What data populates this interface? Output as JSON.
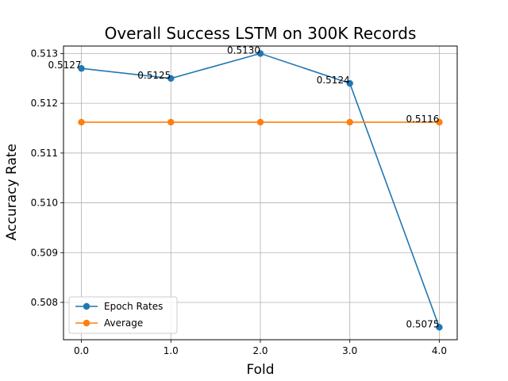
{
  "chart_data": {
    "type": "line",
    "title": "Overall Success LSTM on 300K Records",
    "xlabel": "Fold",
    "ylabel": "Accuracy Rate",
    "x": [
      0.0,
      1.0,
      2.0,
      3.0,
      4.0
    ],
    "xticks": [
      "0.0",
      "1.0",
      "2.0",
      "3.0",
      "4.0"
    ],
    "yticks": [
      "0.508",
      "0.509",
      "0.510",
      "0.511",
      "0.512",
      "0.513"
    ],
    "ytick_values": [
      0.508,
      0.509,
      0.51,
      0.511,
      0.512,
      0.513
    ],
    "xlim": [
      -0.2,
      4.2
    ],
    "ylim": [
      0.50725,
      0.51315
    ],
    "grid": true,
    "legend_position": "lower-left",
    "series": [
      {
        "name": "Epoch Rates",
        "color": "#1f77b4",
        "values": [
          0.5127,
          0.5125,
          0.513,
          0.5124,
          0.5075
        ],
        "labels": [
          "0.5127",
          "0.5125",
          "0.5130",
          "0.5124",
          "0.5075"
        ]
      },
      {
        "name": "Average",
        "color": "#ff7f0e",
        "values": [
          0.51162,
          0.51162,
          0.51162,
          0.51162,
          0.51162
        ],
        "labels": [
          "",
          "",
          "",
          "",
          "0.5116"
        ]
      }
    ]
  }
}
